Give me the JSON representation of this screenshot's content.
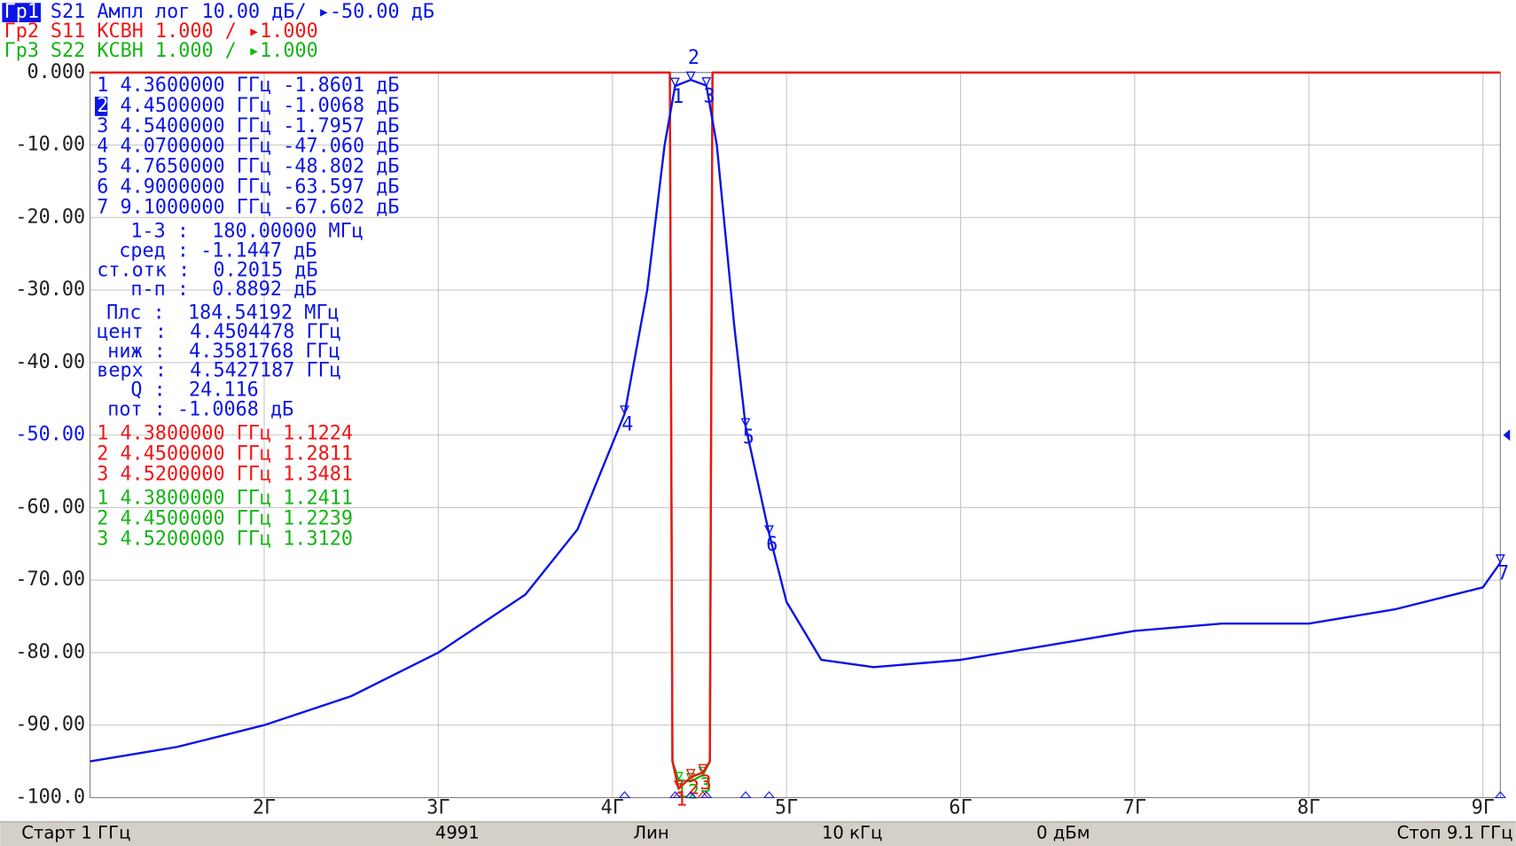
{
  "chart_data": {
    "type": "line",
    "xlim": [
      1,
      9.1
    ],
    "xticks": [
      {
        "value": 2,
        "label": "2Г"
      },
      {
        "value": 3,
        "label": "3Г"
      },
      {
        "value": 4,
        "label": "4Г"
      },
      {
        "value": 5,
        "label": "5Г"
      },
      {
        "value": 6,
        "label": "6Г"
      },
      {
        "value": 7,
        "label": "7Г"
      },
      {
        "value": 8,
        "label": "8Г"
      },
      {
        "value": 9,
        "label": "9Г"
      }
    ],
    "ylim": [
      -100,
      0
    ],
    "yticks": [
      {
        "value": 0,
        "label": "0.000"
      },
      {
        "value": -10,
        "label": "-10.00"
      },
      {
        "value": -20,
        "label": "-20.00"
      },
      {
        "value": -30,
        "label": "-30.00"
      },
      {
        "value": -40,
        "label": "-40.00"
      },
      {
        "value": -50,
        "label": "-50.00"
      },
      {
        "value": -60,
        "label": "-60.00"
      },
      {
        "value": -70,
        "label": "-70.00"
      },
      {
        "value": -80,
        "label": "-80.00"
      },
      {
        "value": -90,
        "label": "-90.00"
      },
      {
        "value": -100,
        "label": "-100.0"
      }
    ],
    "y2lim": [
      1,
      11
    ],
    "ref_level": -50,
    "grid": true,
    "series": [
      {
        "trace": "Гр1",
        "name": "S21",
        "format": "Ампл лог",
        "scale": "10.00 дБ/",
        "ref": "-50.00 дБ",
        "color": "#0a14e6",
        "x": [
          1.0,
          1.5,
          2.0,
          2.5,
          3.0,
          3.5,
          3.8,
          4.07,
          4.2,
          4.3,
          4.36,
          4.45,
          4.54,
          4.6,
          4.7,
          4.765,
          4.9,
          5.0,
          5.2,
          5.5,
          6.0,
          6.5,
          7.0,
          7.5,
          8.0,
          8.5,
          9.0,
          9.1
        ],
        "values": [
          -95,
          -93,
          -90,
          -86,
          -80,
          -72,
          -63,
          -47.06,
          -30,
          -10,
          -1.8601,
          -1.0068,
          -1.7957,
          -10,
          -35,
          -48.802,
          -63.597,
          -73,
          -81,
          -82,
          -81,
          -79,
          -77,
          -76,
          -76,
          -74,
          -71,
          -67.602
        ],
        "markers": [
          {
            "num": "1",
            "freq": 4.36,
            "freq_label": "4.3600000 ГГц",
            "value": -1.8601,
            "value_label": "-1.8601 дБ"
          },
          {
            "num": "2",
            "freq": 4.45,
            "freq_label": "4.4500000 ГГц",
            "value": -1.0068,
            "value_label": "-1.0068 дБ",
            "active": true
          },
          {
            "num": "3",
            "freq": 4.54,
            "freq_label": "4.5400000 ГГц",
            "value": -1.7957,
            "value_label": "-1.7957 дБ"
          },
          {
            "num": "4",
            "freq": 4.07,
            "freq_label": "4.0700000 ГГц",
            "value": -47.06,
            "value_label": "-47.060 дБ"
          },
          {
            "num": "5",
            "freq": 4.765,
            "freq_label": "4.7650000 ГГц",
            "value": -48.802,
            "value_label": "-48.802 дБ"
          },
          {
            "num": "6",
            "freq": 4.9,
            "freq_label": "4.9000000 ГГц",
            "value": -63.597,
            "value_label": "-63.597 дБ"
          },
          {
            "num": "7",
            "freq": 9.1,
            "freq_label": "9.1000000 ГГц",
            "value": -67.602,
            "value_label": "-67.602 дБ"
          }
        ]
      },
      {
        "trace": "Гр2",
        "name": "S11",
        "format": "КСВН",
        "scale": "1.000 /",
        "ref": "1.000",
        "color": "#f01414",
        "axis": "y2",
        "x": [
          1.0,
          4.33,
          4.345,
          4.38,
          4.45,
          4.52,
          4.56,
          4.575,
          9.1
        ],
        "values": [
          11,
          11,
          1.5,
          1.1224,
          1.2811,
          1.3481,
          1.5,
          11,
          11
        ],
        "markers": [
          {
            "num": "1",
            "freq": 4.38,
            "freq_label": "4.3800000 ГГц",
            "value": 1.1224,
            "value_label": "1.1224"
          },
          {
            "num": "2",
            "freq": 4.45,
            "freq_label": "4.4500000 ГГц",
            "value": 1.2811,
            "value_label": "1.2811"
          },
          {
            "num": "3",
            "freq": 4.52,
            "freq_label": "4.5200000 ГГц",
            "value": 1.3481,
            "value_label": "1.3481"
          }
        ]
      },
      {
        "trace": "Гр3",
        "name": "S22",
        "format": "КСВН",
        "scale": "1.000 /",
        "ref": "1.000",
        "color": "#14b414",
        "axis": "y2",
        "x": [
          1.0,
          4.33,
          4.345,
          4.38,
          4.45,
          4.52,
          4.56,
          4.575,
          9.1
        ],
        "values": [
          11,
          11,
          1.5,
          1.2411,
          1.2239,
          1.312,
          1.5,
          11,
          11
        ],
        "markers": [
          {
            "num": "1",
            "freq": 4.38,
            "freq_label": "4.3800000 ГГц",
            "value": 1.2411,
            "value_label": "1.2411"
          },
          {
            "num": "2",
            "freq": 4.45,
            "freq_label": "4.4500000 ГГц",
            "value": 1.2239,
            "value_label": "1.2239"
          },
          {
            "num": "3",
            "freq": 4.52,
            "freq_label": "4.5200000 ГГц",
            "value": 1.312,
            "value_label": "1.3120"
          }
        ]
      }
    ],
    "stats": [
      "1-3 :  180.00000 МГц",
      "сред : -1.1447 дБ",
      "ст.отк :  0.2015 дБ",
      "п-п :  0.8892 дБ",
      "Плс :  184.54192 МГц",
      "цент :  4.4504478 ГГц",
      "ниж :  4.3581768 ГГц",
      "верх :  4.5427187 ГГц",
      "Q :  24.116",
      "пот : -1.0068 дБ"
    ],
    "status": [
      "Старт 1 ГГц",
      "4991",
      "Лин",
      "10 кГц",
      "0 дБм",
      "Стоп 9.1 ГГц"
    ]
  }
}
